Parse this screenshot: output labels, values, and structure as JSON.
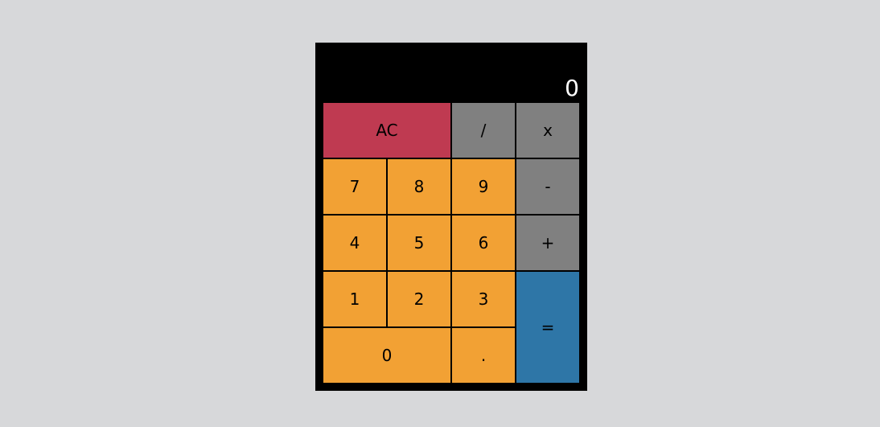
{
  "display": {
    "value": "0"
  },
  "colors": {
    "clear": "#bf3a51",
    "operator": "#808080",
    "number": "#f2a134",
    "equals": "#2e76a7",
    "background": "#d7d8da",
    "body": "#000000"
  },
  "keys": [
    {
      "id": "clear",
      "label": "AC",
      "type": "clear",
      "col": 0,
      "row": 0,
      "w": 2,
      "h": 1
    },
    {
      "id": "divide",
      "label": "/",
      "type": "operator",
      "col": 2,
      "row": 0,
      "w": 1,
      "h": 1
    },
    {
      "id": "multiply",
      "label": "x",
      "type": "operator",
      "col": 3,
      "row": 0,
      "w": 1,
      "h": 1
    },
    {
      "id": "seven",
      "label": "7",
      "type": "number",
      "col": 0,
      "row": 1,
      "w": 1,
      "h": 1
    },
    {
      "id": "eight",
      "label": "8",
      "type": "number",
      "col": 1,
      "row": 1,
      "w": 1,
      "h": 1
    },
    {
      "id": "nine",
      "label": "9",
      "type": "number",
      "col": 2,
      "row": 1,
      "w": 1,
      "h": 1
    },
    {
      "id": "subtract",
      "label": "-",
      "type": "operator",
      "col": 3,
      "row": 1,
      "w": 1,
      "h": 1
    },
    {
      "id": "four",
      "label": "4",
      "type": "number",
      "col": 0,
      "row": 2,
      "w": 1,
      "h": 1
    },
    {
      "id": "five",
      "label": "5",
      "type": "number",
      "col": 1,
      "row": 2,
      "w": 1,
      "h": 1
    },
    {
      "id": "six",
      "label": "6",
      "type": "number",
      "col": 2,
      "row": 2,
      "w": 1,
      "h": 1
    },
    {
      "id": "add",
      "label": "+",
      "type": "operator",
      "col": 3,
      "row": 2,
      "w": 1,
      "h": 1
    },
    {
      "id": "one",
      "label": "1",
      "type": "number",
      "col": 0,
      "row": 3,
      "w": 1,
      "h": 1
    },
    {
      "id": "two",
      "label": "2",
      "type": "number",
      "col": 1,
      "row": 3,
      "w": 1,
      "h": 1
    },
    {
      "id": "three",
      "label": "3",
      "type": "number",
      "col": 2,
      "row": 3,
      "w": 1,
      "h": 1
    },
    {
      "id": "equals",
      "label": "=",
      "type": "equals",
      "col": 3,
      "row": 3,
      "w": 1,
      "h": 2
    },
    {
      "id": "zero",
      "label": "0",
      "type": "number",
      "col": 0,
      "row": 4,
      "w": 2,
      "h": 1
    },
    {
      "id": "decimal",
      "label": ".",
      "type": "number",
      "col": 2,
      "row": 4,
      "w": 1,
      "h": 1
    }
  ]
}
